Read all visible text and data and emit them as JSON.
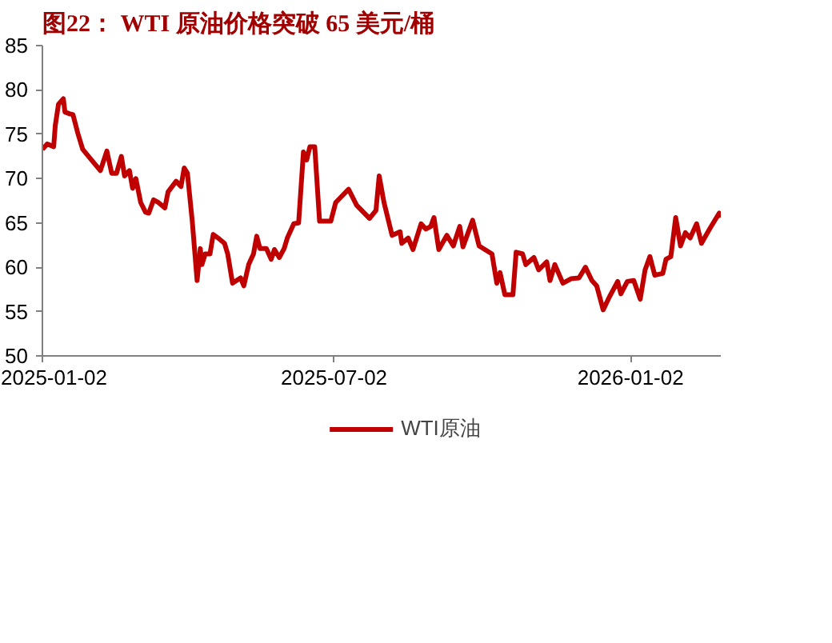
{
  "chart_data": {
    "type": "line",
    "title": "图22： WTI 原油价格突破 65 美元/桶",
    "x": [
      "2025-01-02",
      "2025-01-05",
      "2025-01-09",
      "2025-01-10",
      "2025-01-12",
      "2025-01-15",
      "2025-01-16",
      "2025-01-19",
      "2025-01-21",
      "2025-01-24",
      "2025-01-27",
      "2025-02-01",
      "2025-02-07",
      "2025-02-11",
      "2025-02-14",
      "2025-02-17",
      "2025-02-20",
      "2025-02-22",
      "2025-02-25",
      "2025-02-27",
      "2025-03-01",
      "2025-03-04",
      "2025-03-07",
      "2025-03-09",
      "2025-03-12",
      "2025-03-15",
      "2025-03-19",
      "2025-03-21",
      "2025-03-26",
      "2025-03-29",
      "2025-03-31",
      "2025-04-02",
      "2025-04-05",
      "2025-04-08",
      "2025-04-10",
      "2025-04-11",
      "2025-04-13",
      "2025-04-16",
      "2025-04-18",
      "2025-04-21",
      "2025-04-25",
      "2025-04-27",
      "2025-04-30",
      "2025-05-05",
      "2025-05-07",
      "2025-05-10",
      "2025-05-13",
      "2025-05-15",
      "2025-05-17",
      "2025-05-21",
      "2025-05-24",
      "2025-05-26",
      "2025-05-29",
      "2025-06-01",
      "2025-06-03",
      "2025-06-07",
      "2025-06-10",
      "2025-06-13",
      "2025-06-15",
      "2025-06-17",
      "2025-06-20",
      "2025-06-23",
      "2025-06-30",
      "2025-07-03",
      "2025-07-11",
      "2025-07-16",
      "2025-07-24",
      "2025-07-28",
      "2025-07-30",
      "2025-08-02",
      "2025-08-07",
      "2025-08-12",
      "2025-08-13",
      "2025-08-17",
      "2025-08-20",
      "2025-08-25",
      "2025-08-28",
      "2025-08-31",
      "2025-09-02",
      "2025-09-05",
      "2025-09-10",
      "2025-09-14",
      "2025-09-18",
      "2025-09-20",
      "2025-09-26",
      "2025-09-30",
      "2025-10-08",
      "2025-10-11",
      "2025-10-13",
      "2025-10-16",
      "2025-10-21",
      "2025-10-23",
      "2025-10-27",
      "2025-10-29",
      "2025-11-03",
      "2025-11-06",
      "2025-11-11",
      "2025-11-13",
      "2025-11-16",
      "2025-11-21",
      "2025-11-26",
      "2025-12-01",
      "2025-12-05",
      "2025-12-09",
      "2025-12-12",
      "2025-12-16",
      "2025-12-20",
      "2025-12-25",
      "2025-12-27",
      "2025-12-31",
      "2026-01-04",
      "2026-01-08",
      "2026-01-11",
      "2026-01-14",
      "2026-01-17",
      "2026-01-22",
      "2026-01-24",
      "2026-01-27",
      "2026-01-30",
      "2026-02-02",
      "2026-02-05",
      "2026-02-08",
      "2026-02-12",
      "2026-02-15",
      "2026-02-20",
      "2026-02-26",
      "2026-02-27"
    ],
    "series": [
      {
        "name": "WTI原油",
        "color": "#c00000",
        "values": [
          73.3,
          73.9,
          73.6,
          76.0,
          78.4,
          79.0,
          77.5,
          77.3,
          77.2,
          75.1,
          73.3,
          72.2,
          70.9,
          73.1,
          70.6,
          70.6,
          72.5,
          70.3,
          70.9,
          68.9,
          70.0,
          67.3,
          66.2,
          66.1,
          67.6,
          67.3,
          66.7,
          68.5,
          69.7,
          69.1,
          71.2,
          70.6,
          65.2,
          58.5,
          62.1,
          60.3,
          61.5,
          61.5,
          63.7,
          63.3,
          62.7,
          61.5,
          58.2,
          58.8,
          57.9,
          60.3,
          61.5,
          63.5,
          62.1,
          62.1,
          60.9,
          62.0,
          61.1,
          62.1,
          63.3,
          64.9,
          65.0,
          73.0,
          72.1,
          73.6,
          73.6,
          65.2,
          65.2,
          67.3,
          68.8,
          67.0,
          65.5,
          66.4,
          70.3,
          67.3,
          63.6,
          64.0,
          62.7,
          63.3,
          62.0,
          64.9,
          64.3,
          64.6,
          65.6,
          62.0,
          63.6,
          62.4,
          64.6,
          62.3,
          65.3,
          62.4,
          61.5,
          58.2,
          59.4,
          56.9,
          56.9,
          61.7,
          61.5,
          60.3,
          61.1,
          59.7,
          60.6,
          58.5,
          60.3,
          58.2,
          58.7,
          58.8,
          60.0,
          58.5,
          57.9,
          55.2,
          56.7,
          58.4,
          57.0,
          58.4,
          58.5,
          56.4,
          59.7,
          61.2,
          59.1,
          59.3,
          60.9,
          61.2,
          65.6,
          62.4,
          63.9,
          63.3,
          64.9,
          62.7,
          64.3,
          66.1,
          65.6
        ]
      }
    ],
    "xlim": [
      "2025-01-02",
      "2026-02-27"
    ],
    "xticks": [
      "2025-01-02",
      "2025-07-02",
      "2026-01-02"
    ],
    "ylim": [
      50,
      85
    ],
    "yticks": [
      50,
      55,
      60,
      65,
      70,
      75,
      80,
      85
    ],
    "grid": false,
    "legend": "bottom",
    "line_style": "solid"
  }
}
